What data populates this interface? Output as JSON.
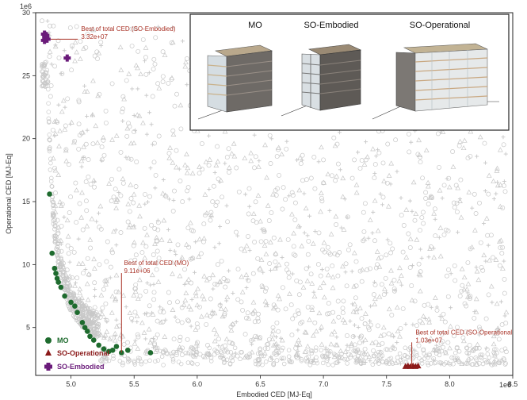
{
  "chart_data": {
    "type": "scatter",
    "title": "",
    "xlabel": "Embodied CED [MJ-Eq]",
    "ylabel": "Operational CED [MJ-Eq]",
    "x_exponent": "1e6",
    "y_exponent": "1e6",
    "xlim": [
      4.72,
      8.5
    ],
    "ylim": [
      1.2,
      30.0
    ],
    "x_ticks": [
      5.0,
      5.5,
      6.0,
      6.5,
      7.0,
      7.5,
      8.0,
      8.5
    ],
    "x_tick_labels": [
      "5.0",
      "5.5",
      "6.0",
      "6.5",
      "7.0",
      "7.5",
      "8.0",
      "8.5"
    ],
    "y_ticks": [
      5,
      10,
      15,
      20,
      25,
      30
    ],
    "y_tick_labels": [
      "5",
      "10",
      "15",
      "20",
      "25",
      "30"
    ],
    "grid": false,
    "legend_position": "bottom-left",
    "background_cloud_color": "#c8c8c8",
    "series": [
      {
        "name": "MO",
        "color": "#1e6b2e",
        "marker": "circle",
        "points": [
          [
            4.83,
            15.6
          ],
          [
            4.85,
            10.9
          ],
          [
            4.87,
            9.7
          ],
          [
            4.88,
            9.3
          ],
          [
            4.89,
            8.9
          ],
          [
            4.9,
            8.6
          ],
          [
            4.92,
            8.2
          ],
          [
            4.95,
            7.5
          ],
          [
            5.0,
            7.0
          ],
          [
            5.03,
            6.7
          ],
          [
            5.05,
            6.2
          ],
          [
            5.09,
            5.4
          ],
          [
            5.11,
            5.0
          ],
          [
            5.13,
            4.7
          ],
          [
            5.15,
            4.3
          ],
          [
            5.18,
            4.0
          ],
          [
            5.22,
            3.6
          ],
          [
            5.26,
            3.3
          ],
          [
            5.3,
            3.1
          ],
          [
            5.33,
            3.2
          ],
          [
            5.36,
            3.5
          ],
          [
            5.4,
            3.0
          ],
          [
            5.45,
            3.2
          ],
          [
            5.63,
            3.0
          ]
        ]
      },
      {
        "name": "SO-Operational",
        "color": "#8b1a1a",
        "marker": "triangle",
        "points": [
          [
            7.65,
            1.9
          ],
          [
            7.67,
            1.95
          ],
          [
            7.69,
            1.9
          ],
          [
            7.71,
            1.95
          ],
          [
            7.73,
            1.9
          ],
          [
            7.75,
            1.95
          ]
        ]
      },
      {
        "name": "SO-Embodied",
        "color": "#6a1b7a",
        "marker": "plus",
        "points": [
          [
            4.79,
            28.3
          ],
          [
            4.8,
            28.0
          ],
          [
            4.81,
            27.9
          ],
          [
            4.79,
            27.8
          ],
          [
            4.8,
            28.2
          ],
          [
            4.97,
            26.4
          ]
        ]
      }
    ],
    "annotations": [
      {
        "line1": "Best of total CED (SO-Embodied)",
        "line2": "3.32e+07",
        "x": 4.8,
        "y": 27.9,
        "text_x": 5.08,
        "text_y": 27.8
      },
      {
        "line1": "Best of total CED (MO)",
        "line2": "9.11e+06",
        "x": 5.4,
        "y": 3.0,
        "text_x": 5.42,
        "text_y": 9.2
      },
      {
        "line1": "Best of total CED (SO-Operational",
        "line2": "1.03e+07",
        "x": 7.7,
        "y": 1.9,
        "text_x": 7.73,
        "text_y": 3.7
      }
    ],
    "inset": {
      "titles": [
        "MO",
        "SO-Embodied",
        "SO-Operational"
      ]
    }
  }
}
